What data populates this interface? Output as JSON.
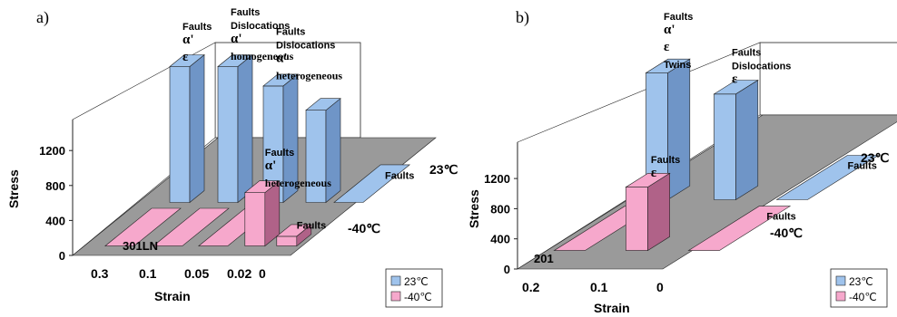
{
  "colors": {
    "c23": "#9fc3ec",
    "c23side": "#6f95c7",
    "cm40": "#f6a8cc",
    "cm40side": "#b06288",
    "floor": "#9a9a9a",
    "edge": "#222222"
  },
  "chart_data": [
    {
      "panel_label": "a)",
      "type": "bar3d",
      "material": "301LN",
      "categories": [
        "0.3",
        "0.1",
        "0.05",
        "0.02",
        "0"
      ],
      "series": [
        {
          "name": "23℃",
          "values": [
            1400,
            1400,
            1200,
            950,
            0
          ],
          "annotations": [
            {
              "category": "0.3",
              "lines": [
                "Faults",
                "α'",
                "ε"
              ]
            },
            {
              "category": "0.1",
              "lines": [
                "Faults",
                "Dislocations",
                "α'",
                "homogeneous"
              ]
            },
            {
              "category": "0.05",
              "lines": [
                "Faults",
                "Dislocations",
                "α'",
                "heterogeneous"
              ]
            },
            {
              "category": "0",
              "lines": [
                "Faults"
              ]
            }
          ]
        },
        {
          "name": "-40℃",
          "values": [
            0,
            0,
            0,
            550,
            100
          ],
          "annotations": [
            {
              "category": "0.02",
              "lines": [
                "Faults",
                "α'",
                "heterogeneous"
              ]
            },
            {
              "category": "0",
              "lines": [
                "Faults"
              ]
            }
          ]
        }
      ],
      "depth_labels": [
        "23℃",
        "-40℃"
      ],
      "ylabel": "Stress",
      "xlabel": "Strain",
      "yticks": [
        "0",
        "400",
        "800",
        "1200"
      ],
      "ylim": [
        0,
        1400
      ],
      "legend": [
        "23℃",
        "-40℃"
      ]
    },
    {
      "panel_label": "b)",
      "type": "bar3d",
      "material": "201",
      "categories": [
        "0.2",
        "0.1",
        "0"
      ],
      "series": [
        {
          "name": "23℃",
          "values": [
            1500,
            1250,
            0
          ],
          "annotations": [
            {
              "category": "0.2",
              "lines": [
                "Faults",
                "α'",
                "ε",
                "Twins"
              ]
            },
            {
              "category": "0.1",
              "lines": [
                "Faults",
                "Dislocations",
                "ε"
              ]
            },
            {
              "category": "0",
              "lines": [
                "Faults"
              ]
            }
          ]
        },
        {
          "name": "-40℃",
          "values": [
            0,
            750,
            0
          ],
          "annotations": [
            {
              "category": "0.1",
              "lines": [
                "Faults",
                "ε"
              ]
            },
            {
              "category": "0",
              "lines": [
                "Faults"
              ]
            }
          ]
        }
      ],
      "depth_labels": [
        "23℃",
        "-40℃"
      ],
      "ylabel": "Stress",
      "xlabel": "Strain",
      "yticks": [
        "0",
        "400",
        "800",
        "1200"
      ],
      "ylim": [
        0,
        1500
      ],
      "legend": [
        "23℃",
        "-40℃"
      ]
    }
  ]
}
